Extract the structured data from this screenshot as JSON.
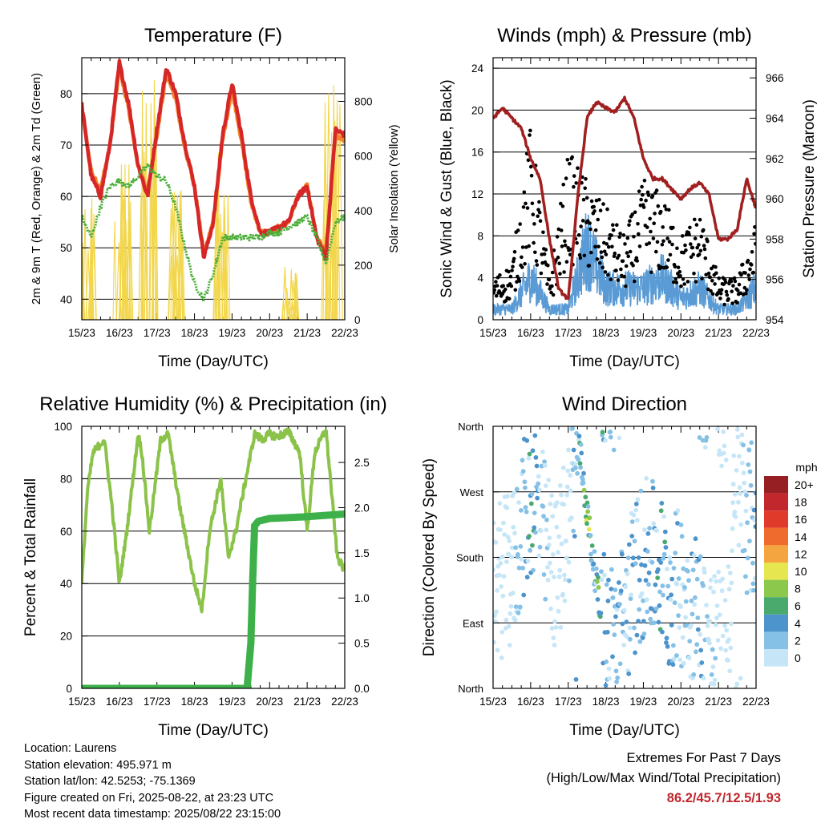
{
  "x_tick_labels": [
    "15/23",
    "16/23",
    "17/23",
    "18/23",
    "19/23",
    "20/23",
    "21/23",
    "22/23"
  ],
  "panels": {
    "temperature": {
      "title": "Temperature (F)",
      "xlabel": "Time (Day/UTC)",
      "ylabel_left": "2m & 9m T (Red, Orange) & 2m Td (Green)",
      "ylabel_right": "Solar Insolation (Yellow)",
      "yticks_left": [
        "40",
        "50",
        "60",
        "70",
        "80"
      ],
      "yticks_right": [
        "0",
        "200",
        "400",
        "600",
        "800"
      ]
    },
    "winds": {
      "title": "Winds (mph) & Pressure (mb)",
      "xlabel": "Time (Day/UTC)",
      "ylabel_left": "Sonic Wind & Gust (Blue, Black)",
      "ylabel_right": "Station Pressure (Maroon)",
      "yticks_left": [
        "0",
        "4",
        "8",
        "12",
        "16",
        "20",
        "24"
      ],
      "yticks_right": [
        "954",
        "956",
        "958",
        "960",
        "962",
        "964",
        "966"
      ]
    },
    "humidity": {
      "title": "Relative Humidity (%) & Precipitation (in)",
      "xlabel": "Time (Day/UTC)",
      "ylabel_left": "Percent & Total Rainfall",
      "yticks_left": [
        "0",
        "20",
        "40",
        "60",
        "80",
        "100"
      ],
      "yticks_right": [
        "0.0",
        "0.5",
        "1.0",
        "1.5",
        "2.0",
        "2.5"
      ]
    },
    "direction": {
      "title": "Wind Direction",
      "xlabel": "Time (Day/UTC)",
      "ylabel_left": "Direction (Colored By Speed)",
      "yticks_left": [
        "North",
        "East",
        "South",
        "West",
        "North"
      ],
      "legend_title": "mph",
      "legend_labels": [
        "0",
        "2",
        "4",
        "6",
        "8",
        "10",
        "12",
        "14",
        "16",
        "18",
        "20+"
      ],
      "legend_colors": [
        "#c6e6f7",
        "#85c0e6",
        "#4d94cc",
        "#4aaa6e",
        "#8cc84b",
        "#e6e650",
        "#f5a540",
        "#ef6a2d",
        "#e03a2a",
        "#c1272d",
        "#961f24"
      ]
    }
  },
  "info": {
    "location": "Location: Laurens",
    "elevation": "Station elevation: 495.971 m",
    "latlon": "Station lat/lon: 42.5253; -75.1369",
    "created": "Figure created on Fri, 2025-08-22, at 23:23 UTC",
    "recent": "Most recent data timestamp: 2025/08/22 23:15:00"
  },
  "extremes": {
    "line1": "Extremes For Past 7 Days",
    "line2": "(High/Low/Max Wind/Total Precipitation)",
    "values": "86.2/45.7/12.5/1.93"
  },
  "chart_data": [
    {
      "type": "line",
      "title": "Temperature (F)",
      "xlabel": "Time (Day/UTC)",
      "x": [
        0,
        0.25,
        0.5,
        0.75,
        1,
        1.25,
        1.5,
        1.75,
        2,
        2.25,
        2.5,
        2.75,
        3,
        3.25,
        3.5,
        3.75,
        4,
        4.25,
        4.5,
        4.75,
        5,
        5.25,
        5.5,
        5.75,
        6,
        6.25,
        6.5,
        6.75,
        7
      ],
      "ylim": [
        36,
        87
      ],
      "series": [
        {
          "name": "2m T",
          "color": "#d62728",
          "axis": "left",
          "values": [
            78,
            64,
            60,
            70,
            86,
            78,
            66,
            60,
            73,
            85,
            80,
            70,
            62,
            48,
            55,
            72,
            82,
            72,
            60,
            53,
            53,
            54,
            55,
            60,
            62,
            52,
            48,
            73,
            72
          ]
        },
        {
          "name": "9m T",
          "color": "#f5822a",
          "axis": "left",
          "values": [
            77,
            65,
            61,
            70,
            85,
            77,
            66,
            61,
            72,
            84,
            79,
            69,
            62,
            49,
            55,
            71,
            81,
            71,
            59,
            53,
            53,
            54,
            55,
            60,
            62,
            52,
            49,
            72,
            71
          ]
        },
        {
          "name": "2m Td",
          "color": "#4caf3a",
          "axis": "left",
          "values": [
            56,
            52,
            58,
            62,
            63,
            62,
            64,
            66,
            64,
            63,
            58,
            50,
            43,
            40,
            45,
            52,
            52,
            52,
            52,
            52,
            53,
            53,
            54,
            55,
            56,
            52,
            47,
            55,
            56
          ]
        }
      ],
      "y2lim": [
        0,
        960
      ],
      "y2_series": {
        "name": "Solar Insolation",
        "color": "#f2d64b",
        "peaks": [
          {
            "x": 0.1,
            "v": 500
          },
          {
            "x": 1.1,
            "v": 720
          },
          {
            "x": 1.8,
            "v": 880
          },
          {
            "x": 2.55,
            "v": 600
          },
          {
            "x": 3.7,
            "v": 620
          },
          {
            "x": 5.5,
            "v": 200
          },
          {
            "x": 6.65,
            "v": 920
          }
        ]
      }
    },
    {
      "type": "scatter",
      "title": "Winds (mph) & Pressure (mb)",
      "xlabel": "Time (Day/UTC)",
      "ylim": [
        0,
        25
      ],
      "y2lim": [
        954,
        967
      ],
      "series": [
        {
          "name": "Sonic Wind",
          "color": "#5a9bd5",
          "axis": "left",
          "x": [
            0,
            0.5,
            1,
            1.5,
            2,
            2.5,
            3,
            3.5,
            4,
            4.5,
            5,
            5.5,
            6,
            6.5,
            7
          ],
          "values": [
            1,
            1,
            4,
            1,
            1,
            7,
            3,
            3,
            3,
            4,
            2,
            3,
            1,
            1,
            3
          ]
        },
        {
          "name": "Gust",
          "color": "#000000",
          "axis": "left",
          "x": [
            0,
            0.5,
            1,
            1.5,
            2,
            2.5,
            3,
            3.5,
            4,
            4.5,
            5,
            5.5,
            6,
            6.5,
            7
          ],
          "values": [
            3,
            4,
            14,
            3,
            12,
            10,
            8,
            6,
            10,
            9,
            6,
            8,
            3,
            3,
            7
          ]
        },
        {
          "name": "Station Pressure",
          "color": "#a11f1f",
          "axis": "right",
          "x": [
            0,
            0.25,
            0.5,
            0.75,
            1,
            1.25,
            1.5,
            1.75,
            2,
            2.25,
            2.5,
            2.75,
            3,
            3.25,
            3.5,
            3.75,
            4,
            4.25,
            4.5,
            4.75,
            5,
            5.25,
            5.5,
            5.75,
            6,
            6.25,
            6.5,
            6.75,
            7
          ],
          "values": [
            964,
            964.5,
            964,
            963.5,
            962,
            961,
            958,
            955.5,
            955,
            960,
            964,
            964.8,
            964.5,
            964.3,
            965,
            964,
            962,
            961,
            961,
            960.5,
            960,
            960.5,
            960.8,
            960.2,
            958,
            958,
            958.5,
            961,
            959.5
          ]
        }
      ]
    },
    {
      "type": "line",
      "title": "Relative Humidity (%) & Precipitation (in)",
      "xlabel": "Time (Day/UTC)",
      "ylim": [
        0,
        100
      ],
      "y2lim": [
        0,
        2.9
      ],
      "series": [
        {
          "name": "Relative Humidity",
          "color": "#8bc34a",
          "axis": "left",
          "x": [
            0,
            0.15,
            0.3,
            0.6,
            0.8,
            1,
            1.2,
            1.5,
            1.6,
            1.8,
            2.1,
            2.3,
            2.6,
            2.8,
            3.0,
            3.2,
            3.4,
            3.7,
            3.9,
            4.1,
            4.3,
            4.6,
            4.8,
            5.0,
            5.2,
            5.5,
            5.8,
            6.0,
            6.2,
            6.5,
            6.8,
            7
          ],
          "values": [
            40,
            75,
            90,
            95,
            70,
            40,
            60,
            97,
            90,
            60,
            95,
            97,
            70,
            55,
            40,
            30,
            60,
            80,
            50,
            60,
            75,
            97,
            95,
            97,
            96,
            98,
            90,
            60,
            90,
            99,
            50,
            45
          ]
        },
        {
          "name": "Total Rainfall",
          "color": "#3db04a",
          "axis": "right",
          "x": [
            0,
            4.4,
            4.5,
            4.55,
            4.6,
            4.7,
            5,
            6,
            7
          ],
          "values": [
            0,
            0,
            0.5,
            1.2,
            1.8,
            1.85,
            1.88,
            1.9,
            1.93
          ]
        }
      ]
    },
    {
      "type": "scatter",
      "title": "Wind Direction",
      "xlabel": "Time (Day/UTC)",
      "ylabel": "Direction (Colored By Speed)",
      "ylim": [
        0,
        360
      ],
      "yticks": [
        "North",
        "East",
        "South",
        "West",
        "North"
      ],
      "series": [
        {
          "name": "Wind Direction",
          "x": [
            0.2,
            0.5,
            0.8,
            1.1,
            1.4,
            1.7,
            2.0,
            2.3,
            2.6,
            2.9,
            3.2,
            3.5,
            3.8,
            4.1,
            4.4,
            4.7,
            5.0,
            5.3,
            5.6,
            5.9,
            6.2,
            6.5,
            6.8
          ],
          "values": [
            150,
            160,
            230,
            270,
            200,
            150,
            250,
            330,
            200,
            90,
            60,
            100,
            160,
            180,
            170,
            130,
            140,
            120,
            80,
            60,
            40,
            300,
            230
          ]
        }
      ]
    }
  ]
}
